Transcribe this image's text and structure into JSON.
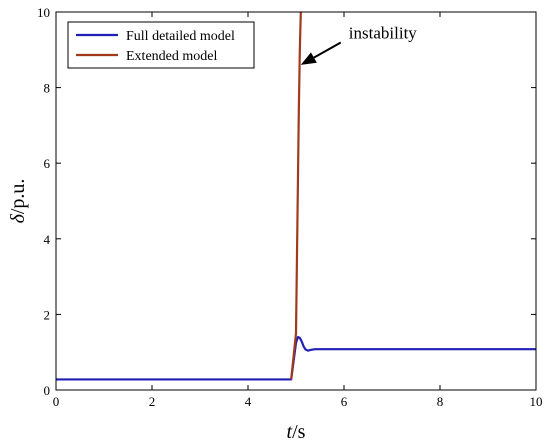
{
  "chart_data": {
    "type": "line",
    "title": "",
    "xlabel": {
      "symbol": "t",
      "unit": "/s"
    },
    "ylabel": {
      "symbol": "δ",
      "unit": "/p.u."
    },
    "xlim": [
      0,
      10
    ],
    "ylim": [
      0,
      10
    ],
    "xticks": [
      0,
      2,
      4,
      6,
      8,
      10
    ],
    "yticks": [
      0,
      2,
      4,
      6,
      8,
      10
    ],
    "grid": false,
    "legend": "top-left",
    "series": [
      {
        "name": "Full detailed model",
        "color": "#1f1fb4",
        "x": [
          0,
          0.05,
          1,
          2,
          3,
          4,
          4.9,
          5.0,
          5.04,
          5.08,
          5.12,
          5.16,
          5.2,
          5.25,
          5.3,
          5.4,
          5.5,
          6,
          7,
          8,
          9,
          10
        ],
        "y": [
          0.28,
          0.28,
          0.28,
          0.28,
          0.28,
          0.28,
          0.28,
          1.25,
          1.4,
          1.38,
          1.28,
          1.15,
          1.07,
          1.04,
          1.06,
          1.08,
          1.08,
          1.08,
          1.08,
          1.08,
          1.08,
          1.08
        ]
      },
      {
        "name": "Extended model",
        "color": "#a03a1a",
        "x": [
          4.9,
          5.0,
          5.03,
          5.06,
          5.08,
          5.1
        ],
        "y": [
          0.28,
          1.5,
          4.5,
          7.5,
          9.0,
          10.0
        ]
      }
    ],
    "annotations": [
      {
        "text": "instability",
        "x_text": 6.1,
        "y_text": 9.3,
        "arrow_x": 5.1,
        "arrow_y": 8.6
      }
    ]
  }
}
